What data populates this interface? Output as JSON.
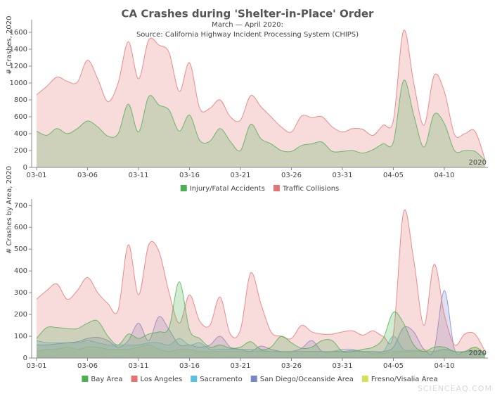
{
  "title": "CA Crashes during 'Shelter-in-Place' Order",
  "subtitle": "March — April 2020:",
  "source": "Source: California Highway Incident Processing System (CHIPS)",
  "watermark": "SCIENCEAQ.COM",
  "chart_data": [
    {
      "type": "area",
      "ylabel": "# Crashes, 2020",
      "year_label": "2020",
      "x": [
        "2020-03-01",
        "2020-03-02",
        "2020-03-03",
        "2020-03-04",
        "2020-03-05",
        "2020-03-06",
        "2020-03-07",
        "2020-03-08",
        "2020-03-09",
        "2020-03-10",
        "2020-03-11",
        "2020-03-12",
        "2020-03-13",
        "2020-03-14",
        "2020-03-15",
        "2020-03-16",
        "2020-03-17",
        "2020-03-18",
        "2020-03-19",
        "2020-03-20",
        "2020-03-21",
        "2020-03-22",
        "2020-03-23",
        "2020-03-24",
        "2020-03-25",
        "2020-03-26",
        "2020-03-27",
        "2020-03-28",
        "2020-03-29",
        "2020-03-30",
        "2020-03-31",
        "2020-04-01",
        "2020-04-02",
        "2020-04-03",
        "2020-04-04",
        "2020-04-05",
        "2020-04-06",
        "2020-04-07",
        "2020-04-08",
        "2020-04-09",
        "2020-04-10",
        "2020-04-11",
        "2020-04-12",
        "2020-04-13",
        "2020-04-14"
      ],
      "xticks": [
        {
          "value": "2020-03-01",
          "label": "03-01"
        },
        {
          "value": "2020-03-06",
          "label": "03-06"
        },
        {
          "value": "2020-03-11",
          "label": "03-11"
        },
        {
          "value": "2020-03-16",
          "label": "03-16"
        },
        {
          "value": "2020-03-21",
          "label": "03-21"
        },
        {
          "value": "2020-03-26",
          "label": "03-26"
        },
        {
          "value": "2020-03-31",
          "label": "03-31"
        },
        {
          "value": "2020-04-05",
          "label": "04-05"
        },
        {
          "value": "2020-04-10",
          "label": "04-10"
        }
      ],
      "ylim": [
        0,
        1750
      ],
      "yticks": [
        0,
        200,
        400,
        600,
        800,
        1000,
        1200,
        1400,
        1600
      ],
      "grid": false,
      "series": [
        {
          "name": "Injury/Fatal Accidents",
          "color": "#4caf50",
          "values": [
            430,
            380,
            460,
            400,
            460,
            550,
            480,
            370,
            400,
            750,
            420,
            840,
            740,
            680,
            430,
            620,
            320,
            310,
            460,
            310,
            200,
            510,
            340,
            280,
            200,
            190,
            260,
            280,
            300,
            190,
            190,
            200,
            170,
            210,
            280,
            300,
            1030,
            620,
            240,
            630,
            520,
            200,
            200,
            190,
            80
          ]
        },
        {
          "name": "Traffic Collisions",
          "color": "#e57373",
          "values": [
            860,
            960,
            1070,
            1020,
            1010,
            1270,
            1050,
            780,
            1000,
            1490,
            1050,
            1510,
            1450,
            1360,
            900,
            1240,
            700,
            700,
            800,
            600,
            560,
            850,
            720,
            600,
            480,
            420,
            610,
            590,
            600,
            480,
            420,
            460,
            450,
            380,
            500,
            560,
            1620,
            1000,
            500,
            1090,
            900,
            390,
            400,
            430,
            90
          ]
        }
      ]
    },
    {
      "type": "area",
      "ylabel": "# Crashes by Area, 2020",
      "year_label": "2020",
      "x": [
        "2020-03-01",
        "2020-03-02",
        "2020-03-03",
        "2020-03-04",
        "2020-03-05",
        "2020-03-06",
        "2020-03-07",
        "2020-03-08",
        "2020-03-09",
        "2020-03-10",
        "2020-03-11",
        "2020-03-12",
        "2020-03-13",
        "2020-03-14",
        "2020-03-15",
        "2020-03-16",
        "2020-03-17",
        "2020-03-18",
        "2020-03-19",
        "2020-03-20",
        "2020-03-21",
        "2020-03-22",
        "2020-03-23",
        "2020-03-24",
        "2020-03-25",
        "2020-03-26",
        "2020-03-27",
        "2020-03-28",
        "2020-03-29",
        "2020-03-30",
        "2020-03-31",
        "2020-04-01",
        "2020-04-02",
        "2020-04-03",
        "2020-04-04",
        "2020-04-05",
        "2020-04-06",
        "2020-04-07",
        "2020-04-08",
        "2020-04-09",
        "2020-04-10",
        "2020-04-11",
        "2020-04-12",
        "2020-04-13",
        "2020-04-14"
      ],
      "xticks": [
        {
          "value": "2020-03-01",
          "label": "03-01"
        },
        {
          "value": "2020-03-06",
          "label": "03-06"
        },
        {
          "value": "2020-03-11",
          "label": "03-11"
        },
        {
          "value": "2020-03-16",
          "label": "03-16"
        },
        {
          "value": "2020-03-21",
          "label": "03-21"
        },
        {
          "value": "2020-03-26",
          "label": "03-26"
        },
        {
          "value": "2020-03-31",
          "label": "03-31"
        },
        {
          "value": "2020-04-05",
          "label": "04-05"
        },
        {
          "value": "2020-04-10",
          "label": "04-10"
        }
      ],
      "ylim": [
        0,
        730
      ],
      "yticks": [
        0,
        100,
        200,
        300,
        400,
        500,
        600,
        700
      ],
      "grid": false,
      "series": [
        {
          "name": "Bay Area",
          "color": "#4caf50",
          "values": [
            90,
            140,
            140,
            135,
            135,
            160,
            170,
            100,
            60,
            110,
            90,
            110,
            120,
            140,
            350,
            130,
            90,
            50,
            60,
            45,
            50,
            75,
            40,
            50,
            100,
            70,
            45,
            50,
            80,
            80,
            30,
            30,
            40,
            50,
            90,
            210,
            160,
            60,
            30,
            50,
            50,
            30,
            30,
            50,
            20
          ]
        },
        {
          "name": "Los Angeles",
          "color": "#e57373",
          "values": [
            270,
            310,
            340,
            270,
            310,
            370,
            300,
            250,
            220,
            520,
            290,
            520,
            490,
            300,
            160,
            290,
            170,
            150,
            280,
            110,
            130,
            390,
            250,
            120,
            100,
            90,
            150,
            120,
            110,
            110,
            120,
            125,
            105,
            125,
            100,
            110,
            670,
            450,
            150,
            430,
            200,
            60,
            110,
            110,
            30
          ]
        },
        {
          "name": "Sacramento",
          "color": "#5bc0de",
          "values": [
            80,
            70,
            70,
            70,
            70,
            80,
            70,
            60,
            60,
            60,
            60,
            70,
            70,
            60,
            90,
            60,
            70,
            40,
            40,
            40,
            40,
            40,
            35,
            30,
            30,
            30,
            30,
            30,
            30,
            30,
            40,
            40,
            30,
            30,
            30,
            100,
            40,
            35,
            30,
            30,
            40,
            30,
            30,
            35,
            20
          ]
        },
        {
          "name": "San Diego/Oceanside Area",
          "color": "#7986cb",
          "values": [
            60,
            60,
            65,
            70,
            75,
            90,
            95,
            80,
            50,
            80,
            160,
            80,
            190,
            130,
            60,
            60,
            50,
            60,
            100,
            50,
            40,
            30,
            55,
            40,
            30,
            30,
            45,
            80,
            30,
            30,
            30,
            35,
            30,
            30,
            30,
            50,
            140,
            120,
            40,
            40,
            310,
            40,
            30,
            30,
            20
          ]
        },
        {
          "name": "Fresno/Visalia Area",
          "color": "#d4e157",
          "values": [
            30,
            40,
            40,
            50,
            40,
            50,
            50,
            40,
            40,
            40,
            50,
            60,
            40,
            30,
            40,
            40,
            30,
            30,
            30,
            30,
            30,
            30,
            30,
            30,
            30,
            30,
            30,
            30,
            30,
            30,
            30,
            30,
            30,
            20,
            20,
            30,
            30,
            30,
            40,
            30,
            40,
            30,
            30,
            50,
            20
          ]
        }
      ]
    }
  ]
}
